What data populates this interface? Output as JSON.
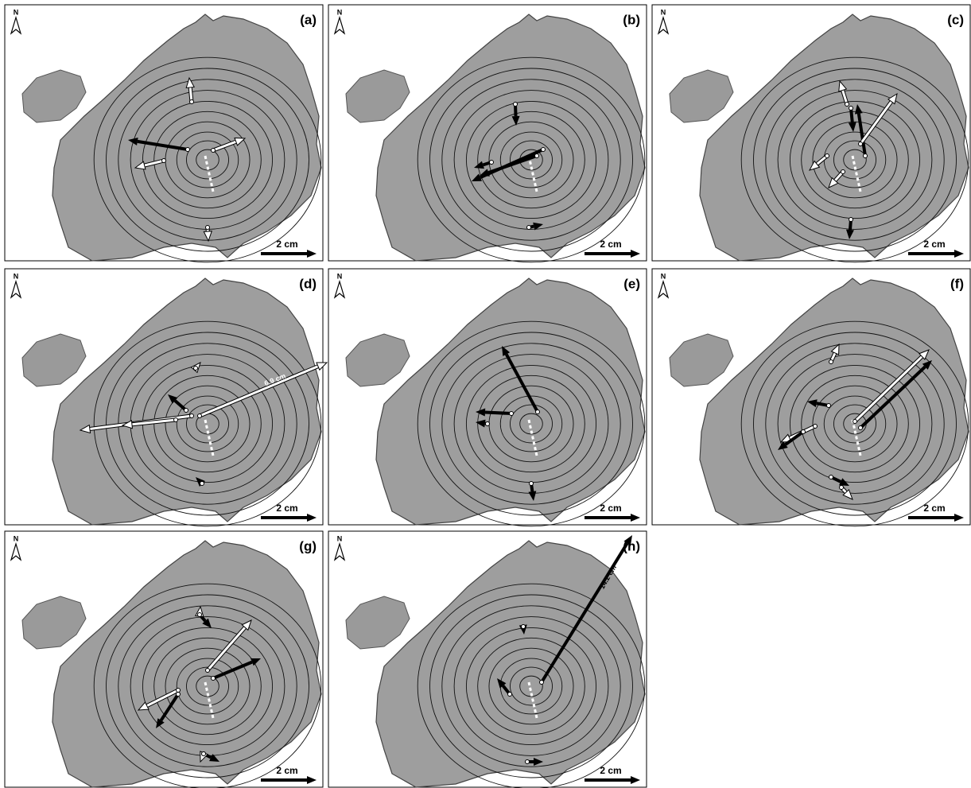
{
  "panels": [
    {
      "label": "(a)",
      "north": "N",
      "scale": "2 cm"
    },
    {
      "label": "(b)",
      "north": "N",
      "scale": "2 cm"
    },
    {
      "label": "(c)",
      "north": "N",
      "scale": "2 cm"
    },
    {
      "label": "(d)",
      "north": "N",
      "scale": "2 cm",
      "annotation": "6.9 cm"
    },
    {
      "label": "(e)",
      "north": "N",
      "scale": "2 cm"
    },
    {
      "label": "(f)",
      "north": "N",
      "scale": "2 cm"
    },
    {
      "label": "(g)",
      "north": "N",
      "scale": "2 cm"
    },
    {
      "label": "(h)",
      "north": "N",
      "scale": "2 cm",
      "annotation": "14.2 cm"
    }
  ]
}
